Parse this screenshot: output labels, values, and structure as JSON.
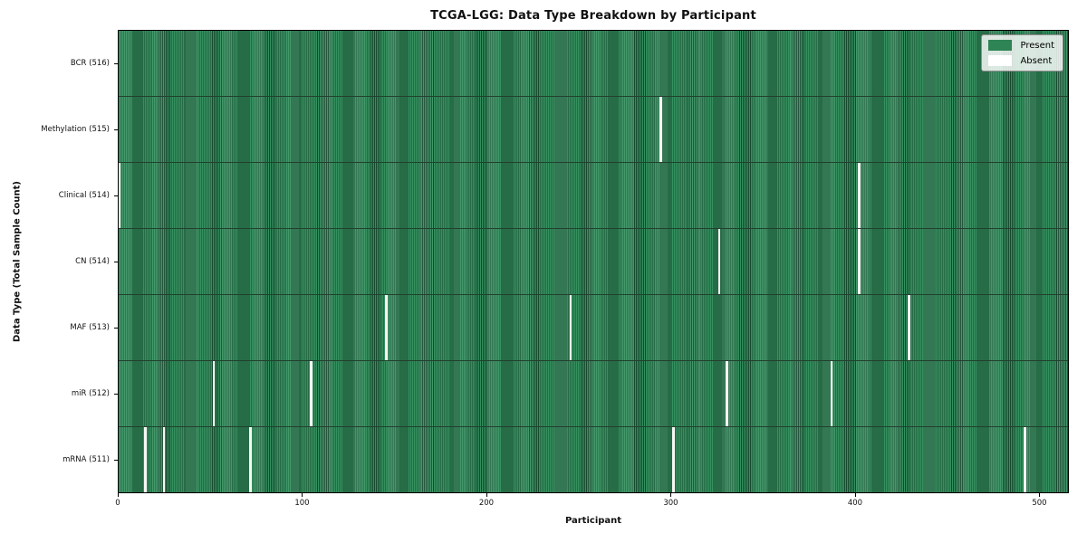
{
  "figure": {
    "title": "TCGA-LGG: Data Type Breakdown by Participant",
    "xlabel": "Participant",
    "ylabel": "Data Type (Total Sample Count)"
  },
  "legend": {
    "position": "upper right",
    "items": [
      {
        "label": "Present",
        "color": "#2e8455"
      },
      {
        "label": "Absent",
        "color": "#ffffff"
      }
    ]
  },
  "chart_data": {
    "type": "heatmap",
    "title": "TCGA-LGG: Data Type Breakdown by Participant",
    "xlabel": "Participant",
    "ylabel": "Data Type (Total Sample Count)",
    "n_participants": 516,
    "xlim": [
      0,
      516
    ],
    "x_ticks": [
      0,
      100,
      200,
      300,
      400,
      500
    ],
    "grid": false,
    "legend_entries": [
      "Present",
      "Absent"
    ],
    "legend_position": "upper right",
    "colors": {
      "present": "#35905f",
      "present_edge": "#16492e",
      "legend_present": "#2e8455",
      "absent": "#f6f6f3",
      "row_divider": "#22402e"
    },
    "rows": [
      {
        "data_type": "BCR",
        "label": "BCR (516)",
        "present_count": 516,
        "absent_participants": []
      },
      {
        "data_type": "Methylation",
        "label": "Methylation (515)",
        "present_count": 515,
        "absent_participants": [
          294
        ]
      },
      {
        "data_type": "Clinical",
        "label": "Clinical (514)",
        "present_count": 514,
        "absent_participants": [
          0,
          402
        ]
      },
      {
        "data_type": "CN",
        "label": "CN (514)",
        "present_count": 514,
        "absent_participants": [
          326,
          402
        ]
      },
      {
        "data_type": "MAF",
        "label": "MAF (513)",
        "present_count": 513,
        "absent_participants": [
          145,
          245,
          429
        ]
      },
      {
        "data_type": "miR",
        "label": "miR (512)",
        "present_count": 512,
        "absent_participants": [
          51,
          104,
          330,
          387
        ]
      },
      {
        "data_type": "mRNA",
        "label": "mRNA (511)",
        "present_count": 511,
        "absent_participants": [
          14,
          24,
          71,
          301,
          492
        ]
      }
    ]
  }
}
